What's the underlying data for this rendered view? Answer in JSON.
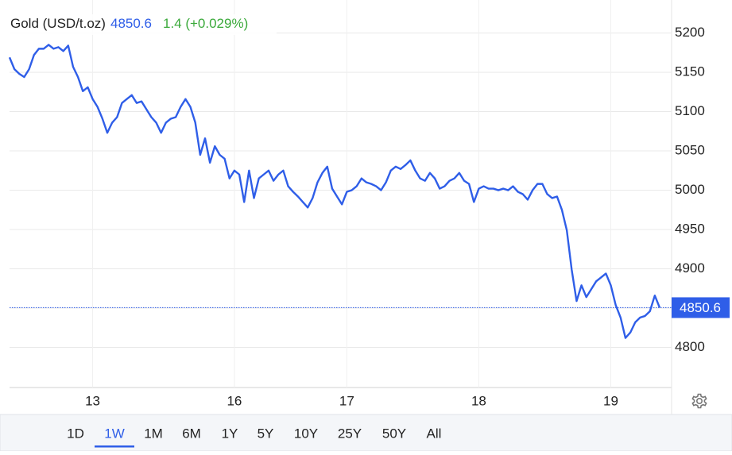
{
  "chart_data": {
    "type": "line",
    "title": "Gold (USD/t.oz)",
    "last_value": 4850.6,
    "change": "1.4 (+0.029%)",
    "color": "#2f5ee8",
    "grid": true,
    "values": [
      5169,
      5154,
      5148,
      5144,
      5154,
      5172,
      5180,
      5180,
      5185,
      5180,
      5182,
      5177,
      5184,
      5157,
      5144,
      5126,
      5131,
      5116,
      5106,
      5091,
      5073,
      5086,
      5093,
      5111,
      5116,
      5121,
      5111,
      5113,
      5103,
      5093,
      5086,
      5073,
      5086,
      5091,
      5093,
      5106,
      5116,
      5106,
      5086,
      5045,
      5066,
      5035,
      5056,
      5045,
      5040,
      5015,
      5025,
      5020,
      4985,
      5025,
      4990,
      5015,
      5020,
      5025,
      5012,
      5020,
      5025,
      5005,
      4998,
      4992,
      4985,
      4978,
      4990,
      5010,
      5022,
      5030,
      5002,
      4992,
      4982,
      4998,
      5000,
      5005,
      5015,
      5010,
      5008,
      5005,
      5000,
      5010,
      5025,
      5030,
      5027,
      5032,
      5038,
      5025,
      5015,
      5012,
      5022,
      5015,
      5002,
      5005,
      5012,
      5015,
      5022,
      5012,
      5008,
      4985,
      5002,
      5005,
      5002,
      5002,
      5000,
      5002,
      5000,
      5005,
      4998,
      4995,
      4988,
      5000,
      5008,
      5008,
      4995,
      4990,
      4992,
      4975,
      4949,
      4899,
      4859,
      4879,
      4864,
      4874,
      4884,
      4889,
      4894,
      4879,
      4854,
      4838,
      4812,
      4819,
      4832,
      4838,
      4840,
      4846,
      4866,
      4850.6
    ],
    "xlim": [
      0,
      133
    ],
    "xticks": [
      {
        "value": 17,
        "label": "13"
      },
      {
        "value": 46,
        "label": "16"
      },
      {
        "value": 69,
        "label": "17"
      },
      {
        "value": 96,
        "label": "18"
      },
      {
        "value": 123,
        "label": "19"
      }
    ],
    "ylim": [
      4749,
      5242
    ],
    "yticks": [
      4800,
      4850,
      4900,
      4950,
      5000,
      5050,
      5100,
      5150,
      5200
    ],
    "ranges": [
      "1D",
      "1W",
      "1M",
      "6M",
      "1Y",
      "5Y",
      "10Y",
      "25Y",
      "50Y",
      "All"
    ],
    "active_range": "1W"
  }
}
